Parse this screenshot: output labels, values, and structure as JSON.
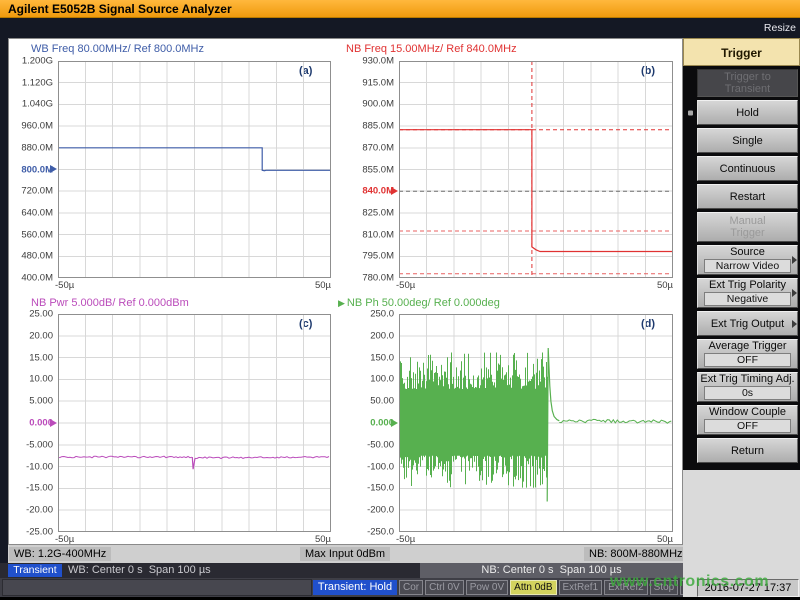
{
  "header": {
    "title": "Agilent E5052B Signal Source Analyzer",
    "resize_label": "Resize"
  },
  "colors": {
    "titlebar_orange": "#f5a623",
    "accent_blue": "#2050cc",
    "attn_active_yellow": "#d3d35e",
    "watermark_green": "#3eaa3e",
    "trace_wb_freq": "#3f5da8",
    "trace_nb_freq": "#e03232",
    "trace_nb_pwr": "#bb4cbb",
    "trace_nb_ph": "#57b04f"
  },
  "plots": [
    {
      "id": "a",
      "corner": "(a)",
      "title": "WB Freq 80.00MHz/ Ref 800.0MHz",
      "color": "#3f5da8",
      "type": "line",
      "ylim": [
        400,
        1200
      ],
      "xlim": [
        -50,
        50
      ],
      "ref_value": 800,
      "ref_index": 5,
      "ylabels": [
        "1.200G",
        "1.120G",
        "1.040G",
        "960.0M",
        "880.0M",
        "800.0M",
        "720.0M",
        "640.0M",
        "560.0M",
        "480.0M",
        "400.0M"
      ],
      "xlabels": [
        "-50µ",
        "50µ"
      ],
      "series": [
        {
          "type": "line",
          "points": [
            [
              -50,
              880
            ],
            [
              24.8,
              880
            ],
            [
              24.8,
              797
            ],
            [
              25.6,
              795.5
            ],
            [
              26.2,
              797
            ],
            [
              50,
              797
            ]
          ]
        }
      ],
      "extras": []
    },
    {
      "id": "b",
      "corner": "(b)",
      "title": "NB Freq 15.00MHz/ Ref 840.0MHz",
      "color": "#e03232",
      "type": "line",
      "ylim": [
        780,
        930
      ],
      "xlim": [
        -50,
        50
      ],
      "ref_value": 840,
      "ref_index": 6,
      "ylabels": [
        "930.0M",
        "915.0M",
        "900.0M",
        "885.0M",
        "870.0M",
        "855.0M",
        "840.0M",
        "825.0M",
        "810.0M",
        "795.0M",
        "780.0M"
      ],
      "xlabels": [
        "-50µ",
        "50µ"
      ],
      "series": [
        {
          "type": "line",
          "points": [
            [
              -50,
              882.5
            ],
            [
              -1.5,
              882.5
            ],
            [
              -1.5,
              801.5
            ],
            [
              0,
              799.5
            ],
            [
              1.5,
              798.3
            ],
            [
              50,
              798.3
            ]
          ]
        }
      ],
      "extras": [
        {
          "type": "hline",
          "y": 882.5,
          "color": "#e03232"
        },
        {
          "type": "hline",
          "y": 812.5,
          "color": "#e86060"
        },
        {
          "type": "hline",
          "y": 783,
          "color": "#e86060"
        },
        {
          "type": "hline",
          "y": 840,
          "color": "#6a6a6a"
        },
        {
          "type": "vline",
          "x": -1.5,
          "color": "#e03232"
        }
      ]
    },
    {
      "id": "c",
      "corner": "(c)",
      "title": "NB Pwr 5.000dB/ Ref 0.000dBm",
      "color": "#bb4cbb",
      "type": "line",
      "ylim": [
        -25,
        25
      ],
      "xlim": [
        -50,
        50
      ],
      "ref_value": 0,
      "ref_index": 5,
      "ylabels": [
        "25.00",
        "20.00",
        "15.00",
        "10.00",
        "5.000",
        "0.000",
        "-5.000",
        "-10.00",
        "-15.00",
        "-20.00",
        "-25.00"
      ],
      "xlabels": [
        "-50µ",
        "50µ"
      ],
      "series": [
        {
          "type": "noisy-line",
          "jitter": 0.2,
          "points": [
            [
              -50,
              -7.8
            ],
            [
              -0.8,
              -7.8
            ]
          ]
        },
        {
          "type": "line",
          "points": [
            [
              -0.8,
              -7.8
            ],
            [
              -0.5,
              -10.6
            ],
            [
              0.2,
              -8.1
            ]
          ]
        },
        {
          "type": "noisy-line",
          "jitter": 0.2,
          "points": [
            [
              0.2,
              -8.0
            ],
            [
              50,
              -7.8
            ]
          ]
        }
      ],
      "extras": []
    },
    {
      "id": "d",
      "corner": "(d)",
      "title": "NB Ph 50.00deg/ Ref 0.000deg",
      "title_arrow": true,
      "color": "#57b04f",
      "type": "line",
      "ylim": [
        -250,
        250
      ],
      "xlim": [
        -50,
        50
      ],
      "ref_value": 0,
      "ref_index": 5,
      "ylabels": [
        "250.0",
        "200.0",
        "150.0",
        "100.0",
        "50.00",
        "0.000",
        "-50.00",
        "-100.0",
        "-150.0",
        "-200.0",
        "-250.0"
      ],
      "xlabels": [
        "-50µ",
        "50µ"
      ],
      "series": [
        {
          "type": "dense-osc",
          "t0": -50,
          "t1": 4.1,
          "core": 78,
          "spike": 162,
          "seed": 7
        },
        {
          "type": "line",
          "points": [
            [
              4.1,
              -180
            ],
            [
              4.45,
              172
            ],
            [
              4.75,
              128
            ],
            [
              5.05,
              85
            ],
            [
              5.45,
              50
            ],
            [
              5.95,
              28
            ],
            [
              6.6,
              15
            ],
            [
              7.6,
              8
            ],
            [
              8.5,
              5
            ]
          ]
        },
        {
          "type": "noisy-line",
          "jitter": 4,
          "points": [
            [
              8.5,
              5
            ],
            [
              50,
              3
            ]
          ]
        }
      ],
      "extras": []
    }
  ],
  "sidebar": {
    "heading": "Trigger",
    "buttons": [
      {
        "label": "Trigger to",
        "label2": "Transient",
        "state": "disabled-dark"
      },
      {
        "label": "Hold",
        "selected": true
      },
      {
        "label": "Single"
      },
      {
        "label": "Continuous"
      },
      {
        "label": "Restart"
      },
      {
        "label": "Manual",
        "label2": "Trigger",
        "state": "disabled"
      },
      {
        "label": "Source",
        "value": "Narrow Video",
        "arrow": true
      },
      {
        "label": "Ext Trig Polarity",
        "value": "Negative",
        "arrow": true
      },
      {
        "label": "Ext Trig Output",
        "arrow": true
      },
      {
        "label": "Average Trigger",
        "value": "OFF"
      },
      {
        "label": "Ext Trig Timing Adj.",
        "value": "0s"
      },
      {
        "label": "Window Couple",
        "value": "OFF"
      },
      {
        "label": "Return"
      }
    ]
  },
  "bars": {
    "limits": {
      "wb": "WB: 1.2G-400MHz",
      "max_input": "Max Input 0dBm",
      "nb": "NB: 800M-880MHz"
    },
    "sweep": {
      "mode": "Transient",
      "wb": "WB: Center 0 s  Span 100 µs",
      "nb": "NB: Center 0 s  Span 100 µs"
    },
    "status": {
      "trigger_state": "Transient: Hold",
      "indicators": [
        {
          "label": "Cor",
          "active": false
        },
        {
          "label": "Ctrl 0V",
          "active": false
        },
        {
          "label": "Pow 0V",
          "active": false
        },
        {
          "label": "Attn 0dB",
          "active": true
        },
        {
          "label": "ExtRef1",
          "active": false
        },
        {
          "label": "ExtRef2",
          "active": false
        },
        {
          "label": "Stop",
          "active": false
        },
        {
          "label": "Svc",
          "active": false
        }
      ],
      "datetime": "2016-07-27 17:37"
    }
  },
  "watermark": {
    "text": "www.cntronics.com"
  }
}
